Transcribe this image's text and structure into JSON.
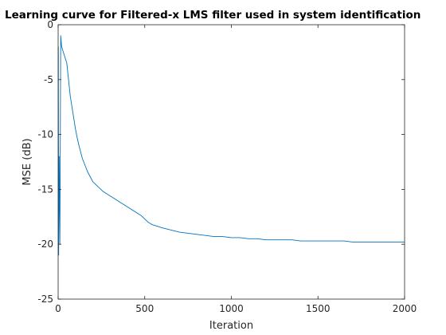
{
  "chart_data": {
    "type": "line",
    "title": "Learning curve for Filtered-x LMS filter used in system identification",
    "xlabel": "Iteration",
    "ylabel": "MSE (dB)",
    "xlim": [
      0,
      2000
    ],
    "ylim": [
      -25,
      0
    ],
    "xticks": [
      0,
      500,
      1000,
      1500,
      2000
    ],
    "yticks": [
      0,
      -5,
      -10,
      -15,
      -20,
      -25
    ],
    "xtick_labels": [
      "0",
      "500",
      "1000",
      "1500",
      "2000"
    ],
    "ytick_labels": [
      "0",
      "-5",
      "-10",
      "-15",
      "-20",
      "-25"
    ],
    "grid": false,
    "series_color": "#0072BD",
    "series": [
      {
        "x": [
          1,
          3,
          6,
          10,
          15,
          20,
          30,
          40,
          50,
          60,
          70,
          80,
          90,
          100,
          110,
          120,
          130,
          140,
          150,
          160,
          170,
          180,
          190,
          200,
          220,
          240,
          260,
          280,
          300,
          320,
          340,
          360,
          380,
          400,
          420,
          440,
          460,
          480,
          500,
          520,
          540,
          560,
          580,
          600,
          650,
          700,
          750,
          800,
          850,
          900,
          950,
          1000,
          1050,
          1100,
          1150,
          1200,
          1250,
          1300,
          1350,
          1400,
          1450,
          1500,
          1550,
          1600,
          1650,
          1700,
          1750,
          1800,
          1850,
          1900,
          1950,
          2000
        ],
        "values": [
          -2.0,
          -21.0,
          -12.0,
          -20.0,
          -1.0,
          -2.0,
          -2.5,
          -3.0,
          -3.5,
          -5.0,
          -6.5,
          -7.5,
          -8.5,
          -9.5,
          -10.3,
          -11.0,
          -11.6,
          -12.2,
          -12.6,
          -13.0,
          -13.4,
          -13.7,
          -14.0,
          -14.3,
          -14.6,
          -14.9,
          -15.2,
          -15.4,
          -15.6,
          -15.8,
          -16.0,
          -16.2,
          -16.4,
          -16.6,
          -16.8,
          -17.0,
          -17.2,
          -17.4,
          -17.7,
          -18.0,
          -18.2,
          -18.3,
          -18.4,
          -18.5,
          -18.7,
          -18.9,
          -19.0,
          -19.1,
          -19.2,
          -19.3,
          -19.3,
          -19.4,
          -19.4,
          -19.5,
          -19.5,
          -19.6,
          -19.6,
          -19.6,
          -19.6,
          -19.7,
          -19.7,
          -19.7,
          -19.7,
          -19.7,
          -19.7,
          -19.8,
          -19.8,
          -19.8,
          -19.8,
          -19.8,
          -19.8,
          -19.8
        ]
      }
    ]
  }
}
